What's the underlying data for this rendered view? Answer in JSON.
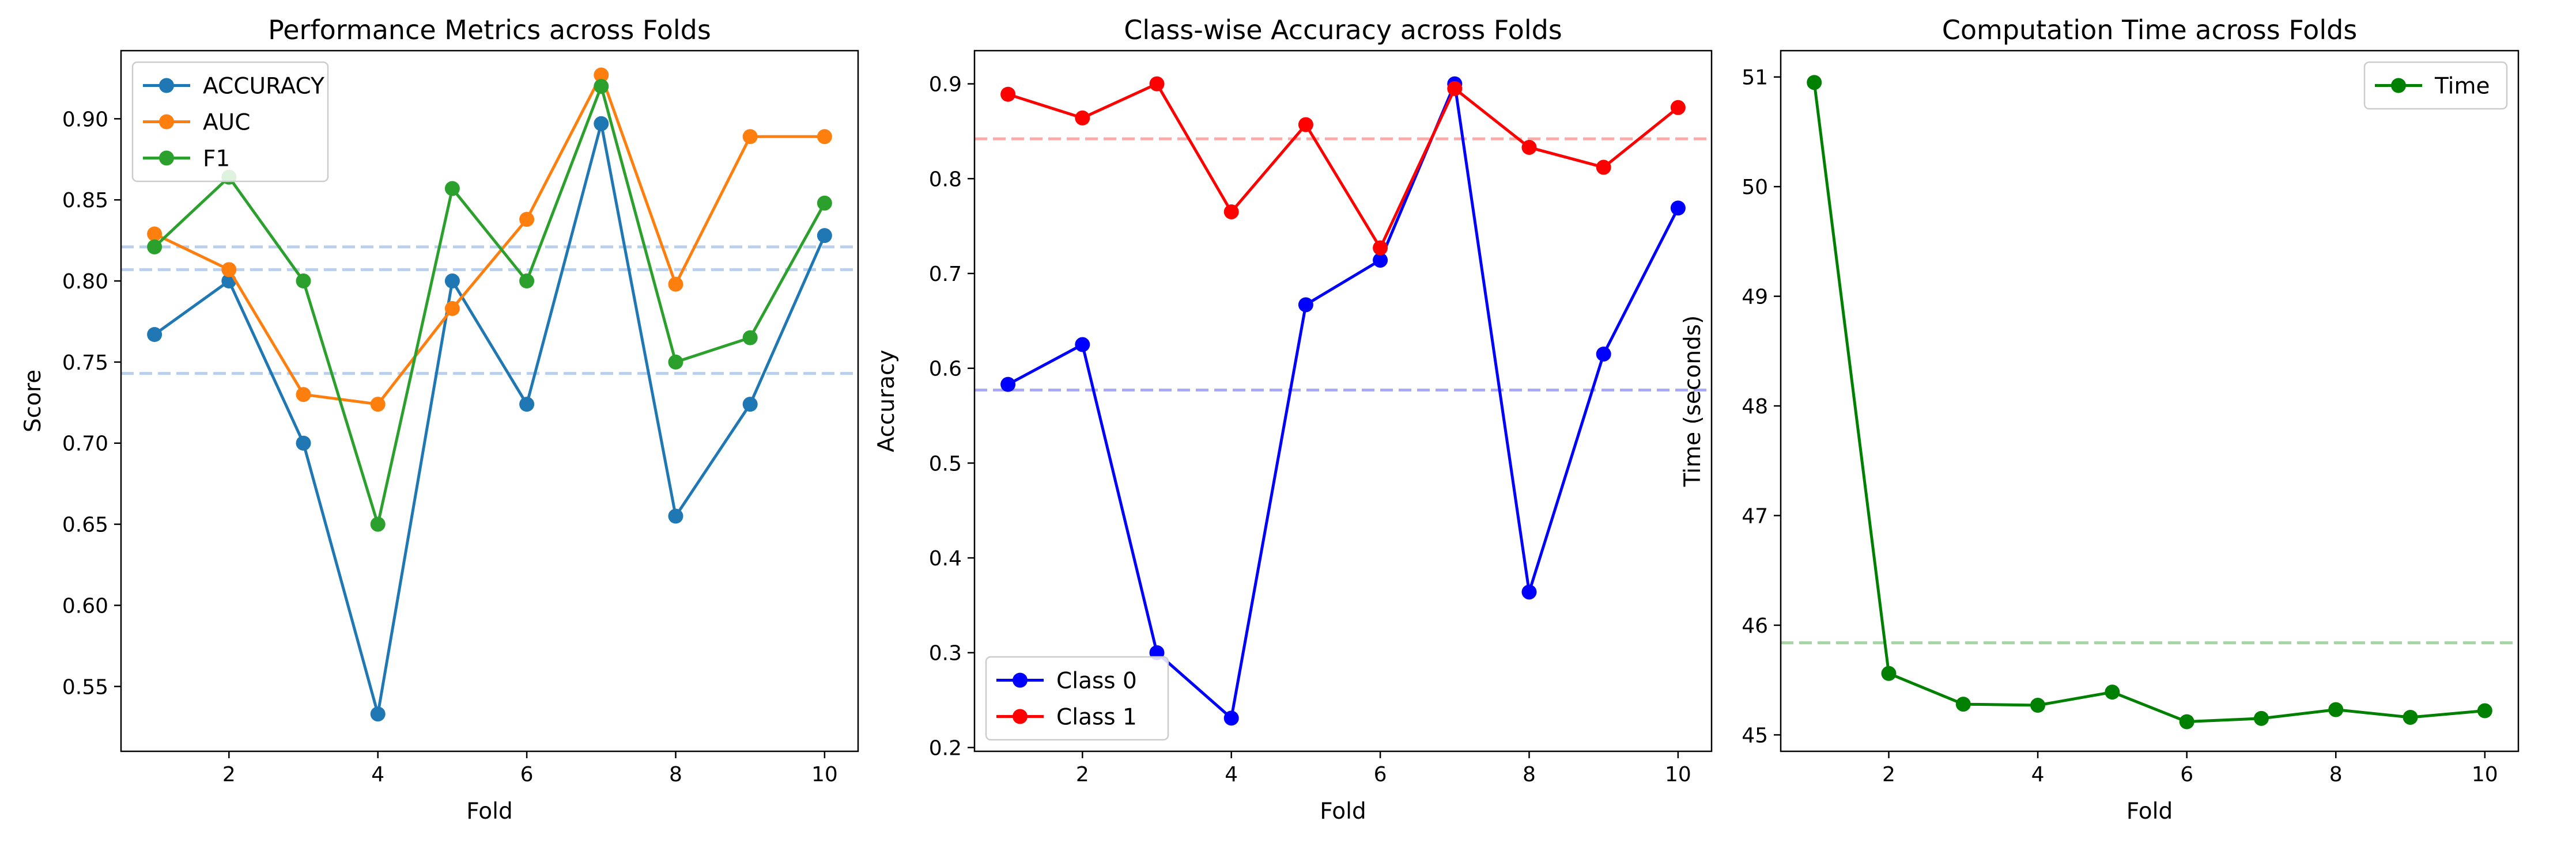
{
  "colors": {
    "accuracy": "#1f77b4",
    "auc": "#ff7f0e",
    "f1": "#2ca02c",
    "class0": "#0000ff",
    "class1": "#ff0000",
    "time": "#008000",
    "mean_line_1": "#aec7e8",
    "mean_line_class0": "#9999ff",
    "mean_line_class1": "#ff9999",
    "mean_line_time": "#99cc99"
  },
  "chart_data": [
    {
      "type": "line",
      "title": "Performance Metrics across Folds",
      "xlabel": "Fold",
      "ylabel": "Score",
      "x": [
        1,
        2,
        3,
        4,
        5,
        6,
        7,
        8,
        9,
        10
      ],
      "xlim": [
        0.55,
        10.45
      ],
      "ylim": [
        0.51,
        0.942
      ],
      "xticks": [
        2,
        4,
        6,
        8,
        10
      ],
      "xtick_labels": [
        "2",
        "4",
        "6",
        "8",
        "10"
      ],
      "yticks": [
        0.55,
        0.6,
        0.65,
        0.7,
        0.75,
        0.8,
        0.85,
        0.9
      ],
      "ytick_labels": [
        "0.55",
        "0.60",
        "0.65",
        "0.70",
        "0.75",
        "0.80",
        "0.85",
        "0.90"
      ],
      "grid": false,
      "legend_position": "top-left",
      "series": [
        {
          "name": "ACCURACY",
          "color_key": "accuracy",
          "values": [
            0.767,
            0.8,
            0.7,
            0.533,
            0.8,
            0.724,
            0.897,
            0.655,
            0.724,
            0.828
          ]
        },
        {
          "name": "AUC",
          "color_key": "auc",
          "values": [
            0.829,
            0.807,
            0.73,
            0.724,
            0.783,
            0.838,
            0.927,
            0.798,
            0.889,
            0.889
          ]
        },
        {
          "name": "F1",
          "color_key": "f1",
          "values": [
            0.821,
            0.864,
            0.8,
            0.65,
            0.857,
            0.8,
            0.92,
            0.75,
            0.765,
            0.848
          ]
        }
      ],
      "mean_lines": [
        {
          "value": 0.743,
          "color_key": "mean_line_1"
        },
        {
          "value": 0.807,
          "color_key": "mean_line_1"
        },
        {
          "value": 0.821,
          "color_key": "mean_line_1"
        }
      ]
    },
    {
      "type": "line",
      "title": "Class-wise Accuracy across Folds",
      "xlabel": "Fold",
      "ylabel": "Accuracy",
      "x": [
        1,
        2,
        3,
        4,
        5,
        6,
        7,
        8,
        9,
        10
      ],
      "xlim": [
        0.55,
        10.45
      ],
      "ylim": [
        0.196,
        0.935
      ],
      "xticks": [
        2,
        4,
        6,
        8,
        10
      ],
      "xtick_labels": [
        "2",
        "4",
        "6",
        "8",
        "10"
      ],
      "yticks": [
        0.2,
        0.3,
        0.4,
        0.5,
        0.6,
        0.7,
        0.8,
        0.9
      ],
      "ytick_labels": [
        "0.2",
        "0.3",
        "0.4",
        "0.5",
        "0.6",
        "0.7",
        "0.8",
        "0.9"
      ],
      "grid": false,
      "legend_position": "bottom-left",
      "series": [
        {
          "name": "Class 0",
          "color_key": "class0",
          "values": [
            0.583,
            0.625,
            0.3,
            0.231,
            0.667,
            0.714,
            0.9,
            0.364,
            0.615,
            0.769
          ]
        },
        {
          "name": "Class 1",
          "color_key": "class1",
          "values": [
            0.889,
            0.864,
            0.9,
            0.765,
            0.857,
            0.727,
            0.895,
            0.833,
            0.812,
            0.875
          ]
        }
      ],
      "mean_lines": [
        {
          "value": 0.577,
          "color_key": "mean_line_class0"
        },
        {
          "value": 0.842,
          "color_key": "mean_line_class1"
        }
      ]
    },
    {
      "type": "line",
      "title": "Computation Time across Folds",
      "xlabel": "Fold",
      "ylabel": "Time (seconds)",
      "x": [
        1,
        2,
        3,
        4,
        5,
        6,
        7,
        8,
        9,
        10
      ],
      "xlim": [
        0.55,
        10.45
      ],
      "ylim": [
        44.85,
        51.24
      ],
      "xticks": [
        2,
        4,
        6,
        8,
        10
      ],
      "xtick_labels": [
        "2",
        "4",
        "6",
        "8",
        "10"
      ],
      "yticks": [
        45,
        46,
        47,
        48,
        49,
        50,
        51
      ],
      "ytick_labels": [
        "45",
        "46",
        "47",
        "48",
        "49",
        "50",
        "51"
      ],
      "grid": false,
      "legend_position": "top-right",
      "series": [
        {
          "name": "Time",
          "color_key": "time",
          "values": [
            50.95,
            45.56,
            45.28,
            45.27,
            45.39,
            45.12,
            45.15,
            45.23,
            45.16,
            45.22
          ]
        }
      ],
      "mean_lines": [
        {
          "value": 45.84,
          "color_key": "mean_line_time"
        }
      ]
    }
  ]
}
